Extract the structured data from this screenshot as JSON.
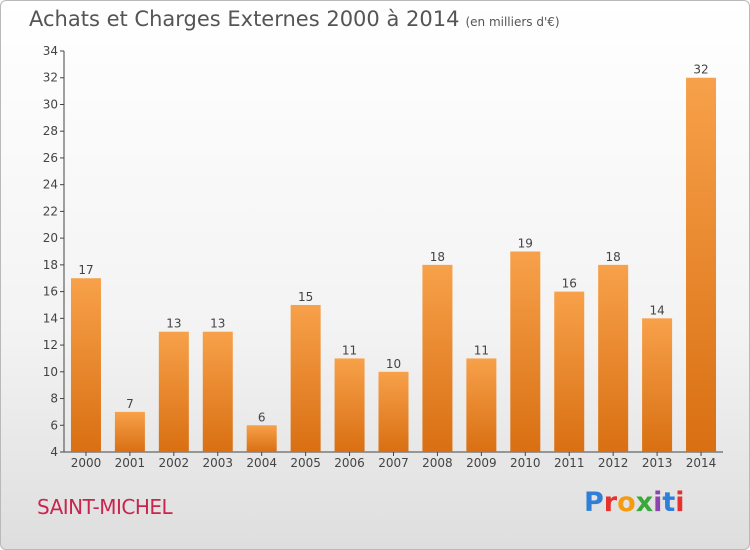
{
  "header": {
    "title": "Achats et Charges Externes 2000 à 2014",
    "subtitle": "(en milliers d'€)"
  },
  "footer": {
    "place": "SAINT-MICHEL",
    "logo_text": "Proxiti"
  },
  "colors": {
    "bar_top": "#f7a14a",
    "bar_bottom": "#d96f12",
    "title": "#555555",
    "place": "#c8264f"
  },
  "chart_data": {
    "type": "bar",
    "title": "Achats et Charges Externes 2000 à 2014",
    "subtitle": "(en milliers d'€)",
    "xlabel": "",
    "ylabel": "",
    "categories": [
      "2000",
      "2001",
      "2002",
      "2003",
      "2004",
      "2005",
      "2006",
      "2007",
      "2008",
      "2009",
      "2010",
      "2011",
      "2012",
      "2013",
      "2014"
    ],
    "values": [
      17,
      7,
      13,
      13,
      6,
      15,
      11,
      10,
      18,
      11,
      19,
      16,
      18,
      14,
      32
    ],
    "ylim": [
      4,
      34
    ],
    "yticks": [
      4,
      6,
      8,
      10,
      12,
      14,
      16,
      18,
      20,
      22,
      24,
      26,
      28,
      30,
      32,
      34
    ],
    "grid": false,
    "legend": "none"
  }
}
